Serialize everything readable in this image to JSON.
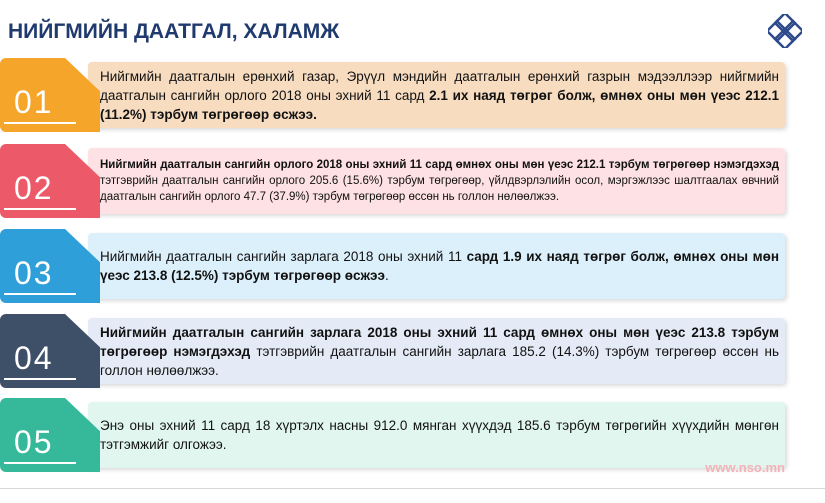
{
  "title": "НИЙГМИЙН ДААТГАЛ, ХАЛАМЖ",
  "items": [
    {
      "number": "01",
      "color": "#f5a52a",
      "bg": "#f7dcc0",
      "small": false,
      "segments": [
        {
          "text": "Нийгмийн даатгалын ерөнхий газар, Эрүүл мэндийн даатгалын ерөнхий газрын мэдээллээр нийгмийн даатгалын сангийн орлого 2018 оны эхний 11 сард ",
          "bold": false
        },
        {
          "text": "2.1 их наяд төгрөг болж, өмнөх оны мөн үеэс 212.1 (11.2%) тэрбум төгрөгөөр өсжээ.",
          "bold": true
        }
      ]
    },
    {
      "number": "02",
      "color": "#ec5a69",
      "bg": "#fde1e4",
      "small": true,
      "segments": [
        {
          "text": "Нийгмийн даатгалын сангийн орлого 2018 оны эхний 11 сард өмнөх оны мөн үеэс 212.1 тэрбум төгрөгөөр нэмэгдэхэд ",
          "bold": true
        },
        {
          "text": "тэтгэврийн даатгалын сангийн орлого 205.6 (15.6%) тэрбум төгрөгөөр, үйлдвэрлэлийн осол, мэргэжлээс шалтгаалах өвчний даатгалын сангийн орлого 47.7 (37.9%) тэрбум төгрөгөөр өссөн нь голлон нөлөөлжээ.",
          "bold": false
        }
      ]
    },
    {
      "number": "03",
      "color": "#2e9fd8",
      "bg": "#dcf0fb",
      "small": false,
      "segments": [
        {
          "text": "Нийгмийн даатгалын сангийн зарлага 2018 оны эхний 11 ",
          "bold": false
        },
        {
          "text": "сард 1.9 их наяд төгрөг болж, өмнөх оны мөн үеэс 213.8 (12.5%)  тэрбум төгрөгөөр өсжээ",
          "bold": true
        },
        {
          "text": ".",
          "bold": false
        }
      ]
    },
    {
      "number": "04",
      "color": "#3e4f68",
      "bg": "#e5ebf6",
      "small": false,
      "segments": [
        {
          "text": "Нийгмийн даатгалын сангийн зарлага 2018 оны эхний 11 сард өмнөх оны мөн үеэс 213.8 тэрбум төгрөгөөр нэмэгдэхэд ",
          "bold": true
        },
        {
          "text": " тэтгэврийн даатгалын сангийн зарлага 185.2 (14.3%) тэрбум төгрөгөөр өссөн нь голлон нөлөөлжээ.",
          "bold": false
        }
      ]
    },
    {
      "number": "05",
      "color": "#36b99b",
      "bg": "#e0f6ef",
      "small": false,
      "segments": [
        {
          "text": "Энэ оны эхний 11 сард 18 хүртэлх насны 912.0 мянган хүүхдэд 185.6 тэрбум төгрөгийн хүүхдийн мөнгөн тэтгэмжийг олгожээ.",
          "bold": false
        }
      ]
    }
  ],
  "footer": "www.nso.mn"
}
